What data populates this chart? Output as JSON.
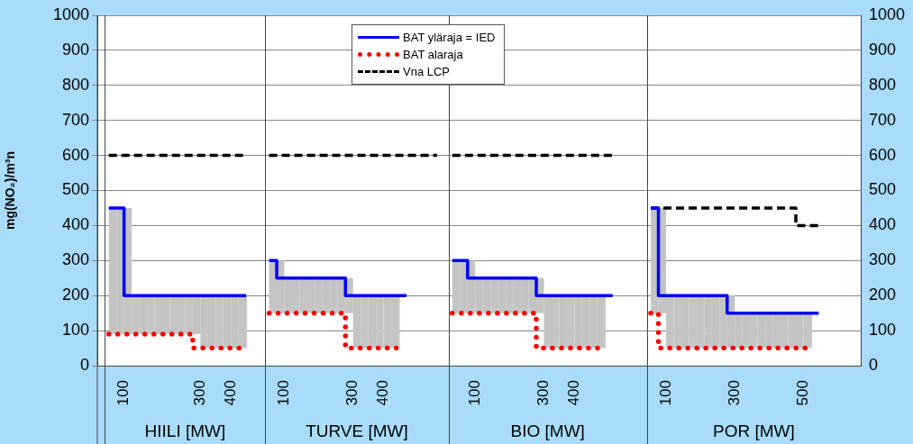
{
  "chart_data": {
    "type": "line",
    "ylabel": "mg(NO₂)/m³n",
    "categories": [
      null,
      null,
      null,
      "100",
      null,
      null,
      null,
      null,
      null,
      null,
      null,
      null,
      null,
      "300",
      null,
      null,
      null,
      "400",
      null,
      null,
      null,
      null,
      null,
      null,
      "100",
      null,
      null,
      null,
      null,
      null,
      null,
      null,
      null,
      "300",
      null,
      null,
      null,
      "400",
      null,
      null,
      null,
      null,
      null,
      null,
      null,
      null,
      null,
      null,
      null,
      "100",
      null,
      null,
      null,
      null,
      null,
      null,
      null,
      null,
      "300",
      null,
      null,
      null,
      "400",
      null,
      null,
      null,
      null,
      null,
      null,
      null,
      null,
      null,
      null,
      null,
      "100",
      null,
      null,
      null,
      null,
      null,
      null,
      null,
      null,
      "300",
      null,
      null,
      null,
      null,
      null,
      null,
      null,
      null,
      "500",
      null,
      null,
      null,
      null,
      null,
      null,
      null
    ],
    "series": [
      {
        "name": "BAT yläraja = IED",
        "type": "step",
        "color": "#0000ff",
        "line_style": "solid",
        "values": [
          null,
          450,
          450,
          450,
          200,
          200,
          200,
          200,
          200,
          200,
          200,
          200,
          200,
          200,
          200,
          200,
          200,
          200,
          200,
          200,
          null,
          null,
          300,
          300,
          250,
          250,
          250,
          250,
          250,
          250,
          250,
          250,
          250,
          200,
          200,
          200,
          200,
          200,
          200,
          200,
          200,
          null,
          null,
          null,
          null,
          null,
          300,
          300,
          300,
          250,
          250,
          250,
          250,
          250,
          250,
          250,
          250,
          250,
          200,
          200,
          200,
          200,
          200,
          200,
          200,
          200,
          200,
          200,
          null,
          null,
          null,
          null,
          450,
          450,
          200,
          200,
          200,
          200,
          200,
          200,
          200,
          200,
          200,
          150,
          150,
          150,
          150,
          150,
          150,
          150,
          150,
          150,
          150,
          150,
          150,
          null,
          null,
          null,
          null,
          null
        ],
        "lower": [
          null,
          90,
          90,
          90,
          90,
          90,
          90,
          90,
          90,
          90,
          90,
          90,
          90,
          50,
          50,
          50,
          50,
          50,
          50,
          50,
          null,
          null,
          150,
          150,
          150,
          150,
          150,
          150,
          150,
          150,
          150,
          150,
          150,
          50,
          50,
          50,
          50,
          50,
          50,
          50,
          null,
          null,
          null,
          null,
          null,
          null,
          150,
          150,
          150,
          150,
          150,
          150,
          150,
          150,
          150,
          150,
          150,
          150,
          50,
          50,
          50,
          50,
          50,
          50,
          50,
          50,
          50,
          null,
          null,
          null,
          null,
          null,
          150,
          150,
          50,
          50,
          50,
          50,
          50,
          50,
          50,
          50,
          50,
          50,
          50,
          50,
          50,
          50,
          50,
          50,
          50,
          50,
          50,
          50,
          null,
          null,
          null,
          null,
          null,
          null
        ],
        "upper": [
          null,
          450,
          450,
          450,
          200,
          200,
          200,
          200,
          200,
          200,
          200,
          200,
          200,
          200,
          200,
          200,
          200,
          200,
          200,
          200,
          null,
          null,
          300,
          300,
          250,
          250,
          250,
          250,
          250,
          250,
          250,
          250,
          250,
          200,
          200,
          200,
          200,
          200,
          200,
          200,
          null,
          null,
          null,
          null,
          null,
          null,
          300,
          300,
          300,
          250,
          250,
          250,
          250,
          250,
          250,
          250,
          250,
          250,
          200,
          200,
          200,
          200,
          200,
          200,
          200,
          200,
          200,
          null,
          null,
          null,
          null,
          null,
          450,
          450,
          200,
          200,
          200,
          200,
          200,
          200,
          200,
          200,
          200,
          150,
          150,
          150,
          150,
          150,
          150,
          150,
          150,
          150,
          150,
          150,
          null,
          null,
          null,
          null,
          null,
          null
        ]
      },
      {
        "name": "BAT alaraja",
        "type": "step",
        "color": "#ff0000",
        "line_style": "dotted",
        "values": [
          null,
          90,
          90,
          90,
          90,
          90,
          90,
          90,
          90,
          90,
          90,
          90,
          90,
          50,
          50,
          50,
          50,
          50,
          50,
          50,
          null,
          null,
          150,
          150,
          150,
          150,
          150,
          150,
          150,
          150,
          150,
          150,
          150,
          50,
          50,
          50,
          50,
          50,
          50,
          50,
          null,
          null,
          null,
          null,
          null,
          null,
          150,
          150,
          150,
          150,
          150,
          150,
          150,
          150,
          150,
          150,
          150,
          150,
          50,
          50,
          50,
          50,
          50,
          50,
          50,
          50,
          50,
          null,
          null,
          null,
          null,
          null,
          150,
          150,
          50,
          50,
          50,
          50,
          50,
          50,
          50,
          50,
          50,
          50,
          50,
          50,
          50,
          50,
          50,
          50,
          50,
          50,
          50,
          50,
          null,
          null,
          null,
          null,
          null,
          null
        ]
      },
      {
        "name": "Vna LCP",
        "type": "step",
        "color": "#000000",
        "line_style": "dashed",
        "values": [
          null,
          600,
          600,
          600,
          600,
          600,
          600,
          600,
          600,
          600,
          600,
          600,
          600,
          600,
          600,
          600,
          600,
          600,
          600,
          600,
          null,
          null,
          600,
          600,
          600,
          600,
          600,
          600,
          600,
          600,
          600,
          600,
          600,
          600,
          600,
          600,
          600,
          600,
          600,
          600,
          600,
          600,
          600,
          600,
          600,
          null,
          600,
          600,
          600,
          600,
          600,
          600,
          600,
          600,
          600,
          600,
          600,
          600,
          600,
          600,
          600,
          600,
          600,
          600,
          600,
          600,
          600,
          600,
          null,
          null,
          null,
          null,
          450,
          450,
          450,
          450,
          450,
          450,
          450,
          450,
          450,
          450,
          450,
          450,
          450,
          450,
          450,
          450,
          450,
          450,
          450,
          450,
          400,
          400,
          400,
          null,
          null,
          null,
          null,
          null
        ]
      }
    ],
    "ylim": [
      0,
      1000
    ],
    "yticks": [
      0,
      100,
      200,
      300,
      400,
      500,
      600,
      700,
      800,
      900,
      1000
    ],
    "y2lim": [
      0,
      1000
    ],
    "y2ticks": [
      0,
      100,
      200,
      300,
      400,
      500,
      600,
      700,
      800,
      900,
      1000
    ],
    "annotations": [
      "HIILI [MW]",
      "TURVE [MW]",
      "BIO [MW]",
      "POR [MW]"
    ],
    "grid": "y",
    "legend": "top",
    "marker": "none"
  }
}
